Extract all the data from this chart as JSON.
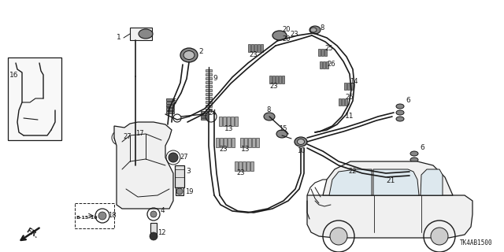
{
  "bg_color": "#ffffff",
  "line_color": "#1a1a1a",
  "fig_width": 6.4,
  "fig_height": 3.2,
  "dpi": 100,
  "diagram_code": "TK4AB1500"
}
